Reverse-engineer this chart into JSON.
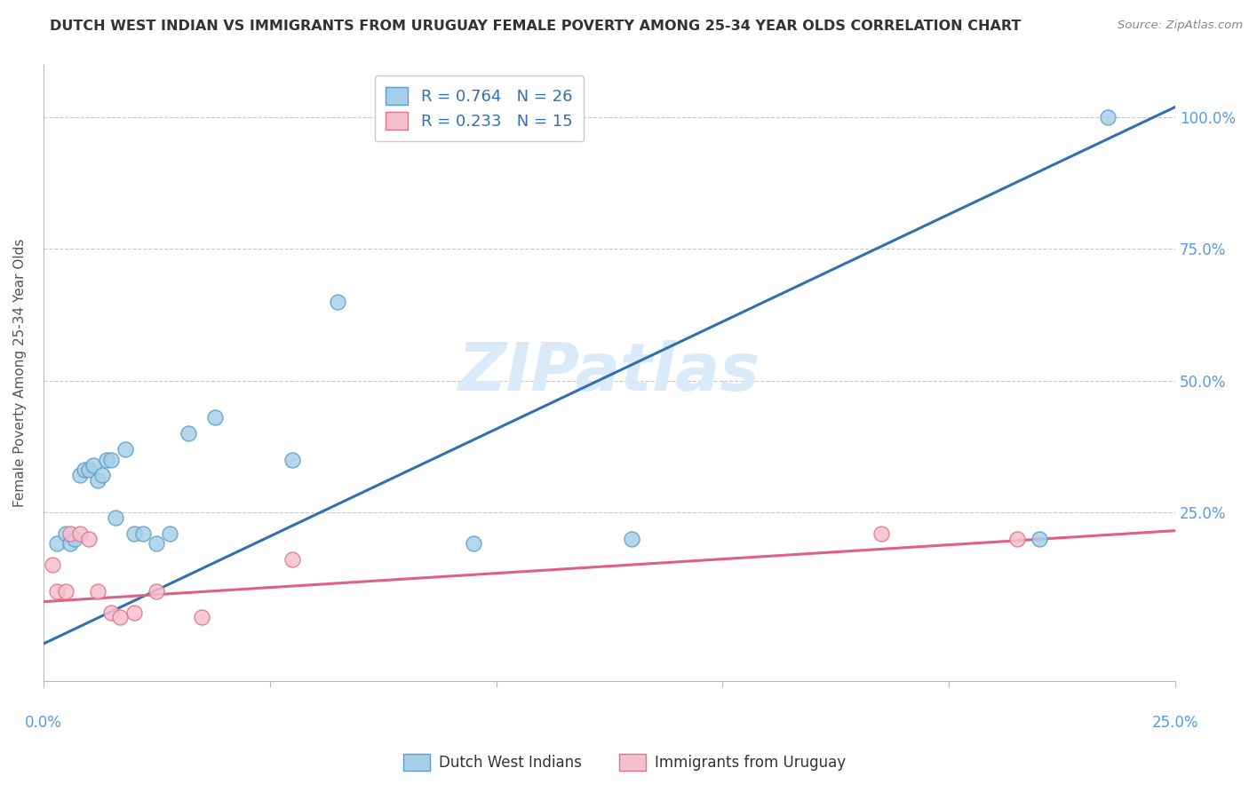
{
  "title": "DUTCH WEST INDIAN VS IMMIGRANTS FROM URUGUAY FEMALE POVERTY AMONG 25-34 YEAR OLDS CORRELATION CHART",
  "source": "Source: ZipAtlas.com",
  "ylabel": "Female Poverty Among 25-34 Year Olds",
  "ytick_positions": [
    0.0,
    0.25,
    0.5,
    0.75,
    1.0
  ],
  "ytick_labels_right": [
    "",
    "25.0%",
    "50.0%",
    "75.0%",
    "100.0%"
  ],
  "xlim": [
    0.0,
    0.25
  ],
  "ylim": [
    -0.07,
    1.1
  ],
  "blue_R": "R = 0.764",
  "blue_N": "N = 26",
  "pink_R": "R = 0.233",
  "pink_N": "N = 15",
  "legend_label_blue": "Dutch West Indians",
  "legend_label_pink": "Immigrants from Uruguay",
  "watermark": "ZIPatlas",
  "blue_scatter_x": [
    0.003,
    0.005,
    0.006,
    0.007,
    0.008,
    0.009,
    0.01,
    0.011,
    0.012,
    0.013,
    0.014,
    0.015,
    0.016,
    0.018,
    0.02,
    0.022,
    0.025,
    0.028,
    0.032,
    0.038,
    0.055,
    0.065,
    0.095,
    0.13,
    0.22,
    0.235
  ],
  "blue_scatter_y": [
    0.19,
    0.21,
    0.19,
    0.2,
    0.32,
    0.33,
    0.33,
    0.34,
    0.31,
    0.32,
    0.35,
    0.35,
    0.24,
    0.37,
    0.21,
    0.21,
    0.19,
    0.21,
    0.4,
    0.43,
    0.35,
    0.65,
    0.19,
    0.2,
    0.2,
    1.0
  ],
  "pink_scatter_x": [
    0.002,
    0.003,
    0.005,
    0.006,
    0.008,
    0.01,
    0.012,
    0.015,
    0.017,
    0.02,
    0.025,
    0.035,
    0.055,
    0.185,
    0.215
  ],
  "pink_scatter_y": [
    0.15,
    0.1,
    0.1,
    0.21,
    0.21,
    0.2,
    0.1,
    0.06,
    0.05,
    0.06,
    0.1,
    0.05,
    0.16,
    0.21,
    0.2
  ],
  "blue_line_x": [
    0.0,
    0.25
  ],
  "blue_line_y": [
    0.0,
    1.02
  ],
  "pink_line_x": [
    0.0,
    0.25
  ],
  "pink_line_y": [
    0.08,
    0.215
  ],
  "blue_scatter_color": "#a8cfe8",
  "blue_scatter_edge": "#5b9dc9",
  "blue_line_color": "#3070b0",
  "pink_scatter_color": "#f5c0cc",
  "pink_scatter_edge": "#e07090",
  "pink_line_color": "#e06080",
  "background_color": "#ffffff",
  "grid_color": "#c8c8c8",
  "title_color": "#333333",
  "ylabel_color": "#555555",
  "right_tick_color": "#5599ee",
  "xtick_label_color": "#5599ee",
  "source_color": "#888888",
  "watermark_color": "#daeaf8",
  "legend_edge_color": "#cccccc",
  "legend_text_color_blue": "#3070b0",
  "bottom_legend_text_color": "#333333"
}
